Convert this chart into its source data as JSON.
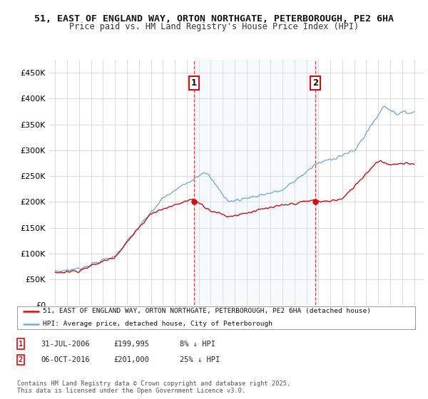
{
  "title_line1": "51, EAST OF ENGLAND WAY, ORTON NORTHGATE, PETERBOROUGH, PE2 6HA",
  "title_line2": "Price paid vs. HM Land Registry's House Price Index (HPI)",
  "ylim": [
    0,
    475000
  ],
  "yticks": [
    0,
    50000,
    100000,
    150000,
    200000,
    250000,
    300000,
    350000,
    400000,
    450000
  ],
  "ytick_labels": [
    "£0",
    "£50K",
    "£100K",
    "£150K",
    "£200K",
    "£250K",
    "£300K",
    "£350K",
    "£400K",
    "£450K"
  ],
  "xlim_start": 1994.5,
  "xlim_end": 2025.8,
  "sale1_year": 2006.58,
  "sale1_price": 199995,
  "sale1_date": "31-JUL-2006",
  "sale1_price_str": "£199,995",
  "sale1_note": "8% ↓ HPI",
  "sale2_year": 2016.76,
  "sale2_price": 201000,
  "sale2_date": "06-OCT-2016",
  "sale2_price_str": "£201,000",
  "sale2_note": "25% ↓ HPI",
  "hpi_color": "#7aadd4",
  "price_color": "#cc1111",
  "marker_box_color": "#cc1111",
  "background_color": "#ffffff",
  "grid_color": "#cccccc",
  "shade_color": "#ddeeff",
  "legend_line1": "51, EAST OF ENGLAND WAY, ORTON NORTHGATE, PETERBOROUGH, PE2 6HA (detached house)",
  "legend_line2": "HPI: Average price, detached house, City of Peterborough",
  "footer": "Contains HM Land Registry data © Crown copyright and database right 2025.\nThis data is licensed under the Open Government Licence v3.0."
}
